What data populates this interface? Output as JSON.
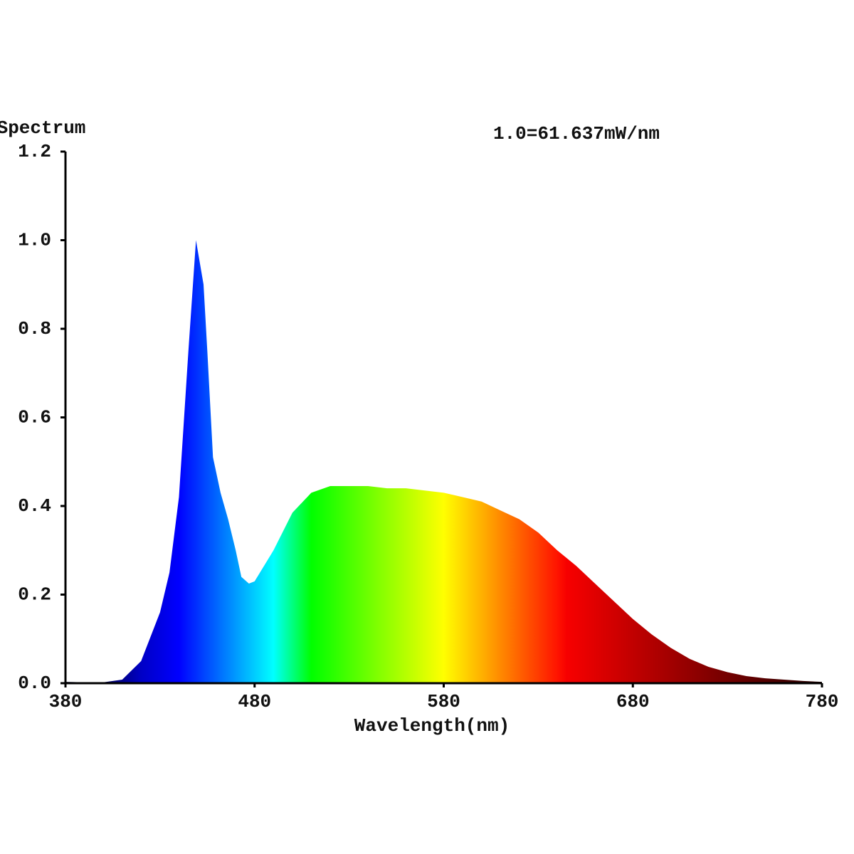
{
  "chart_data": {
    "type": "area",
    "y_label": "Spectrum",
    "annotation": "1.0=61.637mW/nm",
    "x_label": "Wavelength(nm)",
    "x": [
      380,
      390,
      400,
      410,
      420,
      430,
      435,
      440,
      445,
      449,
      453,
      455,
      458,
      462,
      466,
      470,
      473,
      477,
      480,
      490,
      500,
      510,
      520,
      530,
      540,
      550,
      560,
      570,
      580,
      590,
      600,
      610,
      620,
      630,
      640,
      650,
      660,
      670,
      680,
      690,
      700,
      710,
      720,
      730,
      740,
      750,
      760,
      770,
      780
    ],
    "values": [
      0.003,
      0.002,
      0.002,
      0.008,
      0.05,
      0.16,
      0.25,
      0.42,
      0.75,
      1.0,
      0.9,
      0.75,
      0.51,
      0.43,
      0.37,
      0.3,
      0.24,
      0.225,
      0.23,
      0.3,
      0.385,
      0.43,
      0.445,
      0.445,
      0.445,
      0.44,
      0.44,
      0.435,
      0.43,
      0.42,
      0.41,
      0.39,
      0.37,
      0.34,
      0.3,
      0.265,
      0.225,
      0.185,
      0.145,
      0.11,
      0.08,
      0.055,
      0.037,
      0.025,
      0.016,
      0.011,
      0.008,
      0.005,
      0.003
    ],
    "xlim": [
      380,
      780
    ],
    "xticks": [
      380,
      480,
      580,
      680,
      780
    ],
    "ylim": [
      0,
      1.2
    ],
    "yticks": [
      {
        "value": 0,
        "label": "0.0"
      },
      0.2,
      0.4,
      0.6,
      0.8,
      {
        "value": 1,
        "label": "1.0"
      },
      1.2
    ],
    "grid": false
  }
}
